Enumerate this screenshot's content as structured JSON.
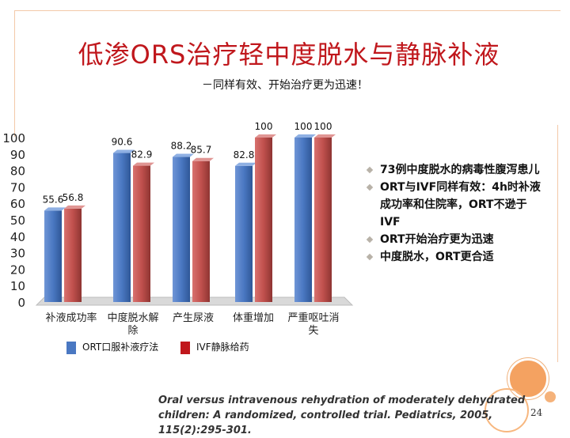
{
  "slide": {
    "title": "低渗ORS治疗轻中度脱水与静脉补液",
    "subtitle": "－同样有效、开始治疗更为迅速！",
    "page_number": "24",
    "citation": "Oral versus intravenous rehydration of moderately dehydrated children: A randomized, controlled trial.  Pediatrics, 2005, 115(2):295-301.",
    "accent_color": "#c0171c"
  },
  "bullets": [
    {
      "text": "73例中度脱水的病毒性腹泻患儿",
      "continuation": false
    },
    {
      "text": "ORT与IVF同样有效：4h时补液",
      "continuation": false
    },
    {
      "text": "成功率和住院率，ORT不逊于",
      "continuation": true
    },
    {
      "text": "IVF",
      "continuation": true
    },
    {
      "text": "ORT开始治疗更为迅速",
      "continuation": false
    },
    {
      "text": "中度脱水，ORT更合适",
      "continuation": false
    }
  ],
  "chart_data": {
    "type": "bar",
    "categories": [
      "补液成功率",
      "中度脱水解除",
      "产生尿液",
      "体重增加",
      "严重呕吐消失"
    ],
    "series": [
      {
        "name": "ORT口服补液疗法",
        "color": "#4a78c2",
        "values": [
          55.6,
          90.6,
          88.2,
          82.8,
          100
        ],
        "labels": [
          "55.6",
          "90.6",
          "88.2",
          "82.8",
          "100"
        ]
      },
      {
        "name": "IVF静脉给药",
        "color": "#c0504d",
        "values": [
          56.8,
          82.9,
          85.7,
          100,
          100
        ],
        "labels": [
          "56.8",
          "82.9",
          "85.7",
          "100",
          "100"
        ]
      }
    ],
    "ylim": [
      0,
      100
    ],
    "yticks": [
      "0",
      "10",
      "20",
      "30",
      "40",
      "50",
      "60",
      "70",
      "80",
      "90",
      "100"
    ],
    "grid": false,
    "legend_position": "bottom"
  }
}
